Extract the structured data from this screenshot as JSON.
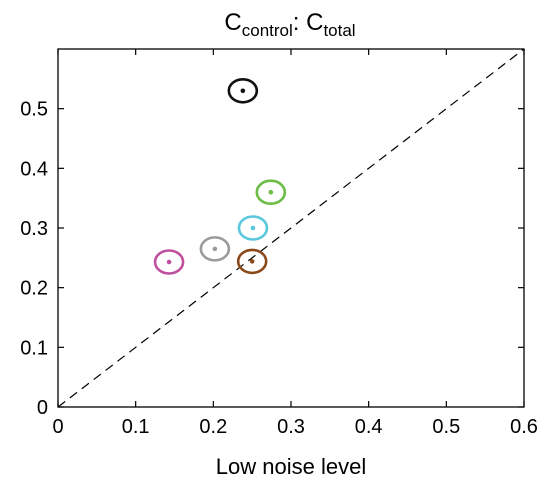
{
  "chart_data": {
    "type": "scatter",
    "title": {
      "main1": "C",
      "sub1": "control",
      "sep": ": ",
      "main2": "C",
      "sub2": "total"
    },
    "xlabel": "Low noise level",
    "ylabel": "",
    "xlim": [
      0,
      0.6
    ],
    "ylim": [
      0,
      0.6
    ],
    "xticks": [
      "0",
      "0.1",
      "0.2",
      "0.3",
      "0.4",
      "0.5",
      "0.6"
    ],
    "yticks": [
      "0",
      "0.1",
      "0.2",
      "0.3",
      "0.4",
      "0.5"
    ],
    "grid": false,
    "reference_line": {
      "style": "dashed",
      "from": [
        0,
        0
      ],
      "to": [
        0.6,
        0.6
      ],
      "color": "#000000"
    },
    "points": [
      {
        "x": 0.238,
        "y": 0.53,
        "color": "#111111"
      },
      {
        "x": 0.274,
        "y": 0.36,
        "color": "#6bbd45"
      },
      {
        "x": 0.251,
        "y": 0.3,
        "color": "#5ac8dc"
      },
      {
        "x": 0.202,
        "y": 0.265,
        "color": "#9b9b9b"
      },
      {
        "x": 0.143,
        "y": 0.243,
        "color": "#c0509e"
      },
      {
        "x": 0.25,
        "y": 0.244,
        "color": "#8b4a1c"
      }
    ]
  }
}
